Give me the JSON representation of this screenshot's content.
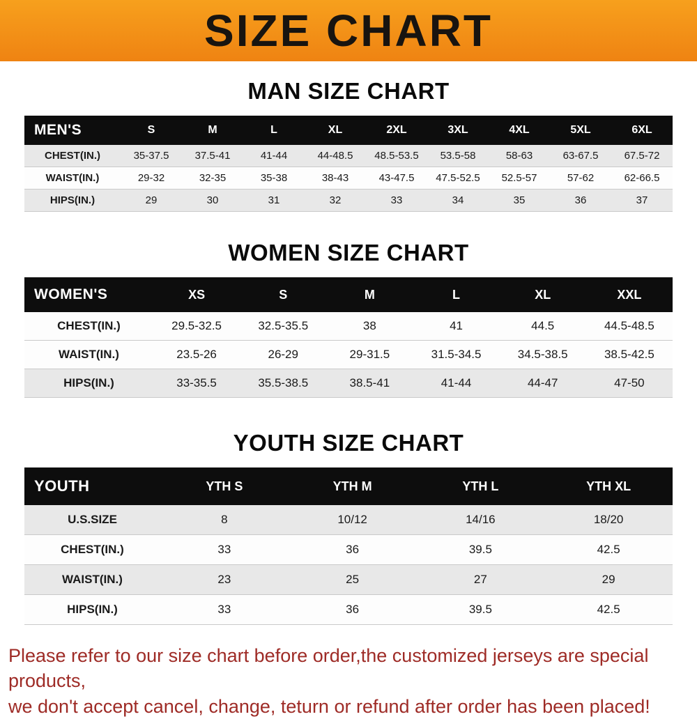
{
  "banner": {
    "title": "SIZE CHART"
  },
  "colors": {
    "banner_top": "#f7a01d",
    "banner_bottom": "#ef8312",
    "header_bg": "#0d0d0d",
    "header_text": "#ffffff",
    "row_shade": "#e8e8e8",
    "row_white": "#fdfdfd",
    "border": "#c9c9c9",
    "heading_text": "#0a0a0a",
    "footer_text": "#9e2b26"
  },
  "footer": {
    "lines": [
      "Please refer to our size chart before order,the customized jerseys are special products,",
      "we don't accept cancel, change, teturn or refund after order has been placed!"
    ]
  },
  "chart_data": [
    {
      "type": "table",
      "title": "MAN SIZE CHART",
      "header_label": "MEN'S",
      "columns": [
        "S",
        "M",
        "L",
        "XL",
        "2XL",
        "3XL",
        "4XL",
        "5XL",
        "6XL"
      ],
      "rows": [
        {
          "label": "CHEST(IN.)",
          "shaded": true,
          "values": [
            "35-37.5",
            "37.5-41",
            "41-44",
            "44-48.5",
            "48.5-53.5",
            "53.5-58",
            "58-63",
            "63-67.5",
            "67.5-72"
          ]
        },
        {
          "label": "WAIST(IN.)",
          "shaded": false,
          "values": [
            "29-32",
            "32-35",
            "35-38",
            "38-43",
            "43-47.5",
            "47.5-52.5",
            "52.5-57",
            "57-62",
            "62-66.5"
          ]
        },
        {
          "label": "HIPS(IN.)",
          "shaded": true,
          "values": [
            "29",
            "30",
            "31",
            "32",
            "33",
            "34",
            "35",
            "36",
            "37"
          ]
        }
      ]
    },
    {
      "type": "table",
      "title": "WOMEN SIZE CHART",
      "header_label": "WOMEN'S",
      "columns": [
        "XS",
        "S",
        "M",
        "L",
        "XL",
        "XXL"
      ],
      "rows": [
        {
          "label": "CHEST(IN.)",
          "shaded": false,
          "values": [
            "29.5-32.5",
            "32.5-35.5",
            "38",
            "41",
            "44.5",
            "44.5-48.5"
          ]
        },
        {
          "label": "WAIST(IN.)",
          "shaded": false,
          "values": [
            "23.5-26",
            "26-29",
            "29-31.5",
            "31.5-34.5",
            "34.5-38.5",
            "38.5-42.5"
          ]
        },
        {
          "label": "HIPS(IN.)",
          "shaded": true,
          "values": [
            "33-35.5",
            "35.5-38.5",
            "38.5-41",
            "41-44",
            "44-47",
            "47-50"
          ]
        }
      ]
    },
    {
      "type": "table",
      "title": "YOUTH SIZE CHART",
      "header_label": "YOUTH",
      "columns": [
        "YTH S",
        "YTH M",
        "YTH L",
        "YTH XL"
      ],
      "rows": [
        {
          "label": "U.S.SIZE",
          "shaded": true,
          "values": [
            "8",
            "10/12",
            "14/16",
            "18/20"
          ]
        },
        {
          "label": "CHEST(IN.)",
          "shaded": false,
          "values": [
            "33",
            "36",
            "39.5",
            "42.5"
          ]
        },
        {
          "label": "WAIST(IN.)",
          "shaded": true,
          "values": [
            "23",
            "25",
            "27",
            "29"
          ]
        },
        {
          "label": "HIPS(IN.)",
          "shaded": false,
          "values": [
            "33",
            "36",
            "39.5",
            "42.5"
          ]
        }
      ]
    }
  ]
}
